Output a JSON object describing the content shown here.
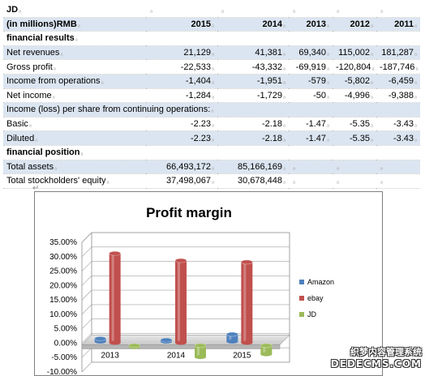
{
  "table": {
    "company": "JD",
    "unit_label": "(in millions)RMB",
    "years": [
      "2015",
      "2014",
      "2013",
      "2012",
      "2011"
    ],
    "sections": {
      "results": "financial results",
      "position": "financial position"
    },
    "rows": {
      "net_revenues": {
        "label": "Net revenues",
        "values": [
          "21,129",
          "41,381",
          "69,340",
          "115,002",
          "181,287"
        ]
      },
      "gross_profit": {
        "label": "Gross profit",
        "values": [
          "-22,533",
          "-43,332",
          "-69,919",
          "-120,804",
          "-187,746"
        ]
      },
      "income_ops": {
        "label": "Income from operations",
        "values": [
          "-1,404",
          "-1,951",
          "-579",
          "-5,802",
          "-6,459"
        ]
      },
      "net_income": {
        "label": "Net income",
        "values": [
          "-1,284",
          "-1,729",
          "-50",
          "-4,996",
          "-9,388"
        ]
      },
      "eps_heading": {
        "label": "Income (loss) per share from continuing operations:"
      },
      "basic": {
        "label": "Basic",
        "values": [
          "-2.23",
          "-2.18",
          "-1.47",
          "-5.35",
          "-3.43"
        ]
      },
      "diluted": {
        "label": "Diluted",
        "values": [
          "-2.23",
          "-2.18",
          "-1.47",
          "-5.35",
          "-3.43"
        ]
      },
      "total_assets": {
        "label": "Total assets",
        "values": [
          "66,493,172",
          "85,166,169",
          "",
          "",
          ""
        ]
      },
      "equity": {
        "label": "Total stockholders' equity",
        "values": [
          "37,498,067",
          "30,678,448",
          "",
          "",
          ""
        ]
      }
    }
  },
  "chart_data": {
    "type": "bar",
    "title": "Profit margin",
    "categories": [
      "2013",
      "2014",
      "2015"
    ],
    "series": [
      {
        "name": "Amazon",
        "values": [
          1.0,
          0.5,
          2.5
        ],
        "color": "#4f81bd"
      },
      {
        "name": "ebay",
        "values": [
          31.0,
          28.5,
          28.0
        ],
        "color": "#c0504d"
      },
      {
        "name": "JD",
        "values": [
          -0.5,
          -4.0,
          -3.0
        ],
        "color": "#9bbb59"
      }
    ],
    "yticks": [
      "35.00%",
      "30.00%",
      "25.00%",
      "20.00%",
      "15.00%",
      "10.00%",
      "5.00%",
      "0.00%",
      "-5.00%",
      "-10.00%"
    ],
    "ylim": [
      -10,
      35
    ],
    "legend_position": "right",
    "style": "3d-cylinder"
  },
  "watermark": {
    "line1": "织梦内容管理系统",
    "line2": "DEDECMS.COM"
  }
}
